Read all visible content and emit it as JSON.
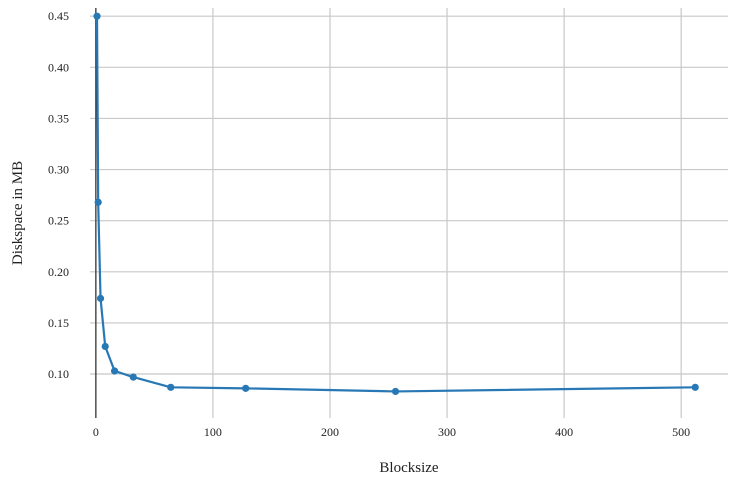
{
  "chart_data": {
    "type": "line",
    "title": "",
    "xlabel": "Blocksize",
    "ylabel": "Diskspace in MB",
    "xlim": [
      -5,
      540
    ],
    "ylim": [
      0.057,
      0.458
    ],
    "x_ticks": [
      0,
      100,
      200,
      300,
      400,
      500
    ],
    "x_tick_labels": [
      "0",
      "100",
      "200",
      "300",
      "400",
      "500"
    ],
    "y_ticks": [
      0.1,
      0.15,
      0.2,
      0.25,
      0.3,
      0.35,
      0.4,
      0.45
    ],
    "y_tick_labels": [
      "0.10",
      "0.15",
      "0.20",
      "0.25",
      "0.30",
      "0.35",
      "0.40",
      "0.45"
    ],
    "grid": true,
    "legend": "none",
    "series": [
      {
        "color": "#2878b5",
        "points": [
          {
            "x": 1,
            "y": 0.45
          },
          {
            "x": 2,
            "y": 0.268
          },
          {
            "x": 4,
            "y": 0.174
          },
          {
            "x": 8,
            "y": 0.127
          },
          {
            "x": 16,
            "y": 0.103
          },
          {
            "x": 32,
            "y": 0.097
          },
          {
            "x": 64,
            "y": 0.087
          },
          {
            "x": 128,
            "y": 0.086
          },
          {
            "x": 256,
            "y": 0.083
          },
          {
            "x": 512,
            "y": 0.087
          }
        ]
      }
    ]
  }
}
